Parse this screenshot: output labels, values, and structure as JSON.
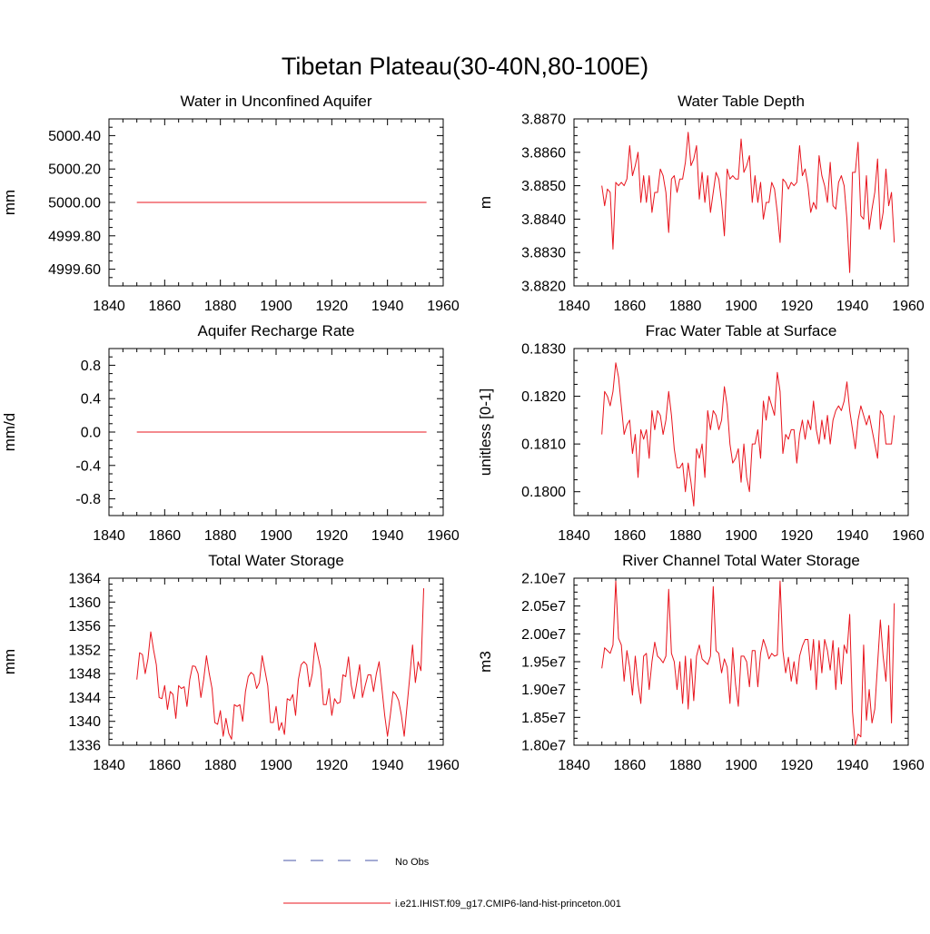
{
  "figure_title": "Tibetan Plateau(30-40N,80-100E)",
  "legend": {
    "entries": [
      {
        "label": "No Obs",
        "style": "dashed",
        "color": "#4a57a8"
      },
      {
        "label": "i.e21.IHIST.f09_g17.CMIP6-land-hist-princeton.001",
        "style": "solid",
        "color": "#e8141d"
      }
    ]
  },
  "colors": {
    "series": "#e8141d",
    "axis": "#000000"
  },
  "chart_data": [
    {
      "type": "line",
      "title": "Water in Unconfined Aquifer",
      "ylabel": "mm",
      "xlim": [
        1840,
        1960
      ],
      "ylim": [
        4999.5,
        5000.5
      ],
      "xticks": [
        1840,
        1860,
        1880,
        1900,
        1920,
        1940,
        1960
      ],
      "xtick_labels": [
        "1840",
        "1860",
        "1880",
        "1900",
        "1920",
        "1940",
        "1960"
      ],
      "yticks": [
        4999.6,
        4999.8,
        5000.0,
        5000.2,
        5000.4
      ],
      "ytick_labels": [
        "4999.60",
        "4999.80",
        "5000.00",
        "5000.20",
        "5000.40"
      ],
      "x_start": 1850,
      "series": [
        {
          "color": "#e8141d",
          "constant": 5000.0,
          "x_end": 1954
        }
      ]
    },
    {
      "type": "line",
      "title": "Water Table Depth",
      "ylabel": "m",
      "xlim": [
        1840,
        1960
      ],
      "ylim": [
        3.882,
        3.887
      ],
      "xticks": [
        1840,
        1860,
        1880,
        1900,
        1920,
        1940,
        1960
      ],
      "xtick_labels": [
        "1840",
        "1860",
        "1880",
        "1900",
        "1920",
        "1940",
        "1960"
      ],
      "yticks": [
        3.882,
        3.883,
        3.884,
        3.885,
        3.886,
        3.887
      ],
      "ytick_labels": [
        "3.8820",
        "3.8830",
        "3.8840",
        "3.8850",
        "3.8860",
        "3.8870"
      ],
      "x_start": 1850,
      "series": [
        {
          "color": "#e8141d",
          "values": [
            3.885,
            3.8844,
            3.8849,
            3.8848,
            3.8831,
            3.8851,
            3.885,
            3.8851,
            3.885,
            3.8852,
            3.8862,
            3.8853,
            3.8856,
            3.886,
            3.8845,
            3.8853,
            3.8845,
            3.8853,
            3.8842,
            3.8848,
            3.8848,
            3.8855,
            3.8853,
            3.8848,
            3.8836,
            3.8852,
            3.8853,
            3.8848,
            3.8852,
            3.8852,
            3.8857,
            3.8866,
            3.8856,
            3.8858,
            3.8862,
            3.8846,
            3.8854,
            3.8845,
            3.8853,
            3.8842,
            3.8848,
            3.8854,
            3.8852,
            3.8845,
            3.8835,
            3.8855,
            3.8852,
            3.8853,
            3.8852,
            3.8852,
            3.8864,
            3.8854,
            3.8856,
            3.8859,
            3.8845,
            3.8853,
            3.8845,
            3.8851,
            3.884,
            3.8845,
            3.8845,
            3.8851,
            3.8849,
            3.8842,
            3.8833,
            3.8852,
            3.8851,
            3.8849,
            3.8851,
            3.885,
            3.8851,
            3.8862,
            3.8853,
            3.8855,
            3.885,
            3.8842,
            3.8845,
            3.8843,
            3.8859,
            3.8853,
            3.885,
            3.8845,
            3.8857,
            3.8844,
            3.8843,
            3.8851,
            3.8853,
            3.885,
            3.884,
            3.8824,
            3.8854,
            3.8854,
            3.8863,
            3.8841,
            3.884,
            3.8853,
            3.8837,
            3.8843,
            3.8848,
            3.8858,
            3.8837,
            3.8842,
            3.8855,
            3.8844,
            3.8848,
            3.8833
          ]
        }
      ]
    },
    {
      "type": "line",
      "title": "Aquifer Recharge Rate",
      "ylabel": "mm/d",
      "xlim": [
        1840,
        1960
      ],
      "ylim": [
        -1.0,
        1.0
      ],
      "xticks": [
        1840,
        1860,
        1880,
        1900,
        1920,
        1940,
        1960
      ],
      "xtick_labels": [
        "1840",
        "1860",
        "1880",
        "1900",
        "1920",
        "1940",
        "1960"
      ],
      "yticks": [
        -0.8,
        -0.4,
        0.0,
        0.4,
        0.8
      ],
      "ytick_labels": [
        "-0.8",
        "-0.4",
        "0.0",
        "0.4",
        "0.8"
      ],
      "x_start": 1850,
      "series": [
        {
          "color": "#e8141d",
          "constant": 0.0,
          "x_end": 1954
        }
      ]
    },
    {
      "type": "line",
      "title": "Frac Water Table at Surface",
      "ylabel": "unitless [0-1]",
      "xlim": [
        1840,
        1960
      ],
      "ylim": [
        0.1795,
        0.183
      ],
      "xticks": [
        1840,
        1860,
        1880,
        1900,
        1920,
        1940,
        1960
      ],
      "xtick_labels": [
        "1840",
        "1860",
        "1880",
        "1900",
        "1920",
        "1940",
        "1960"
      ],
      "yticks": [
        0.18,
        0.181,
        0.182,
        0.183
      ],
      "ytick_labels": [
        "0.1800",
        "0.1810",
        "0.1820",
        "0.1830"
      ],
      "x_start": 1850,
      "series": [
        {
          "color": "#e8141d",
          "values": [
            0.1812,
            0.1821,
            0.182,
            0.1818,
            0.1821,
            0.1827,
            0.1824,
            0.1818,
            0.1812,
            0.1814,
            0.1815,
            0.1808,
            0.1812,
            0.1803,
            0.1813,
            0.1811,
            0.1813,
            0.1807,
            0.1817,
            0.1813,
            0.1817,
            0.1816,
            0.1812,
            0.1815,
            0.1821,
            0.1816,
            0.1809,
            0.1805,
            0.1805,
            0.1806,
            0.18,
            0.1806,
            0.1802,
            0.1797,
            0.1809,
            0.1807,
            0.181,
            0.1803,
            0.1817,
            0.1813,
            0.1817,
            0.1816,
            0.1813,
            0.1815,
            0.1822,
            0.1818,
            0.181,
            0.1806,
            0.1807,
            0.1809,
            0.1802,
            0.181,
            0.1803,
            0.18,
            0.181,
            0.181,
            0.1813,
            0.1807,
            0.1819,
            0.1815,
            0.182,
            0.1818,
            0.1816,
            0.1825,
            0.1821,
            0.1808,
            0.1812,
            0.1811,
            0.1813,
            0.1813,
            0.1806,
            0.1812,
            0.1815,
            0.1811,
            0.1815,
            0.1813,
            0.1819,
            0.1813,
            0.181,
            0.1815,
            0.1811,
            0.1816,
            0.181,
            0.1815,
            0.1817,
            0.1818,
            0.1817,
            0.1819,
            0.1823,
            0.1817,
            0.1813,
            0.1809,
            0.1815,
            0.1818,
            0.1816,
            0.1814,
            0.1816,
            0.1813,
            0.181,
            0.1807,
            0.1817,
            0.1816,
            0.181,
            0.181,
            0.181,
            0.1816
          ]
        }
      ]
    },
    {
      "type": "line",
      "title": "Total Water Storage",
      "ylabel": "mm",
      "xlim": [
        1840,
        1960
      ],
      "ylim": [
        1336,
        1364
      ],
      "xticks": [
        1840,
        1860,
        1880,
        1900,
        1920,
        1940,
        1960
      ],
      "xtick_labels": [
        "1840",
        "1860",
        "1880",
        "1900",
        "1920",
        "1940",
        "1960"
      ],
      "yticks": [
        1336,
        1340,
        1344,
        1348,
        1352,
        1356,
        1360,
        1364
      ],
      "ytick_labels": [
        "1336",
        "1340",
        "1344",
        "1348",
        "1352",
        "1356",
        "1360",
        "1364"
      ],
      "x_start": 1850,
      "series": [
        {
          "color": "#e8141d",
          "values": [
            1347,
            1351.5,
            1351.2,
            1348,
            1350.5,
            1355,
            1352,
            1349.5,
            1344,
            1343.8,
            1346,
            1342,
            1345,
            1344.5,
            1340.5,
            1346,
            1345.5,
            1345.8,
            1342.5,
            1347,
            1349.3,
            1349.2,
            1348,
            1344,
            1347,
            1351,
            1348,
            1345.5,
            1339.8,
            1339.5,
            1341.8,
            1337.5,
            1340.5,
            1338,
            1337,
            1342.8,
            1342.5,
            1342.8,
            1340,
            1345,
            1347.5,
            1348.2,
            1347.8,
            1345.5,
            1346.5,
            1351,
            1348.5,
            1346,
            1339.8,
            1339.8,
            1342.5,
            1338.5,
            1339.8,
            1337.8,
            1343.8,
            1343.5,
            1344.5,
            1341,
            1347,
            1349.5,
            1350,
            1349.5,
            1345.8,
            1348,
            1353.2,
            1351,
            1348.8,
            1342.8,
            1342.8,
            1345.5,
            1341,
            1343.8,
            1343,
            1343.2,
            1347.8,
            1347.5,
            1350.8,
            1346,
            1343.8,
            1346.5,
            1349.5,
            1344,
            1346,
            1347.8,
            1347.8,
            1345,
            1348,
            1350,
            1345.5,
            1341,
            1337.5,
            1341,
            1345,
            1344.5,
            1343.5,
            1341,
            1337.5,
            1342.5,
            1347.5,
            1352.8,
            1346.5,
            1350,
            1348.5,
            1362.3
          ]
        }
      ]
    },
    {
      "type": "line",
      "title": "River Channel Total Water Storage",
      "ylabel": "m3",
      "xlim": [
        1840,
        1960
      ],
      "ylim": [
        18000000,
        21000000
      ],
      "xticks": [
        1840,
        1860,
        1880,
        1900,
        1920,
        1940,
        1960
      ],
      "xtick_labels": [
        "1840",
        "1860",
        "1880",
        "1900",
        "1920",
        "1940",
        "1960"
      ],
      "yticks": [
        18000000,
        18500000,
        19000000,
        19500000,
        20000000,
        20500000,
        21000000
      ],
      "ytick_labels": [
        "1.80e7",
        "1.85e7",
        "1.90e7",
        "1.95e7",
        "2.00e7",
        "2.05e7",
        "2.10e7"
      ],
      "x_start": 1850,
      "series": [
        {
          "color": "#e8141d",
          "values": [
            19380000,
            19750000,
            19700000,
            19650000,
            19800000,
            20950000,
            19920000,
            19800000,
            19150000,
            19700000,
            19400000,
            18900000,
            19600000,
            19100000,
            18750000,
            19600000,
            19650000,
            19000000,
            19500000,
            19850000,
            19600000,
            19550000,
            19480000,
            19600000,
            20800000,
            19650000,
            19500000,
            19000000,
            19500000,
            18750000,
            19600000,
            18650000,
            19550000,
            18800000,
            19600000,
            19800000,
            19550000,
            19500000,
            19450000,
            19600000,
            20850000,
            19700000,
            19650000,
            19300000,
            19550000,
            19400000,
            18750000,
            19750000,
            19100000,
            18700000,
            19600000,
            19600000,
            19500000,
            19050000,
            19700000,
            19700000,
            19050000,
            19650000,
            19900000,
            19750000,
            19550000,
            19650000,
            19600000,
            19620000,
            20950000,
            19700000,
            19300000,
            19580000,
            19150000,
            19500000,
            19100000,
            19600000,
            19780000,
            19900000,
            19900000,
            19350000,
            19900000,
            19000000,
            19880000,
            19300000,
            19900000,
            19700000,
            19350000,
            19880000,
            19000000,
            19750000,
            19100000,
            19800000,
            19650000,
            20350000,
            18600000,
            18000000,
            18200000,
            18150000,
            19800000,
            18450000,
            19000000,
            18400000,
            18650000,
            19450000,
            20250000,
            19600000,
            19150000,
            20150000,
            18400000,
            20550000
          ]
        }
      ]
    }
  ]
}
